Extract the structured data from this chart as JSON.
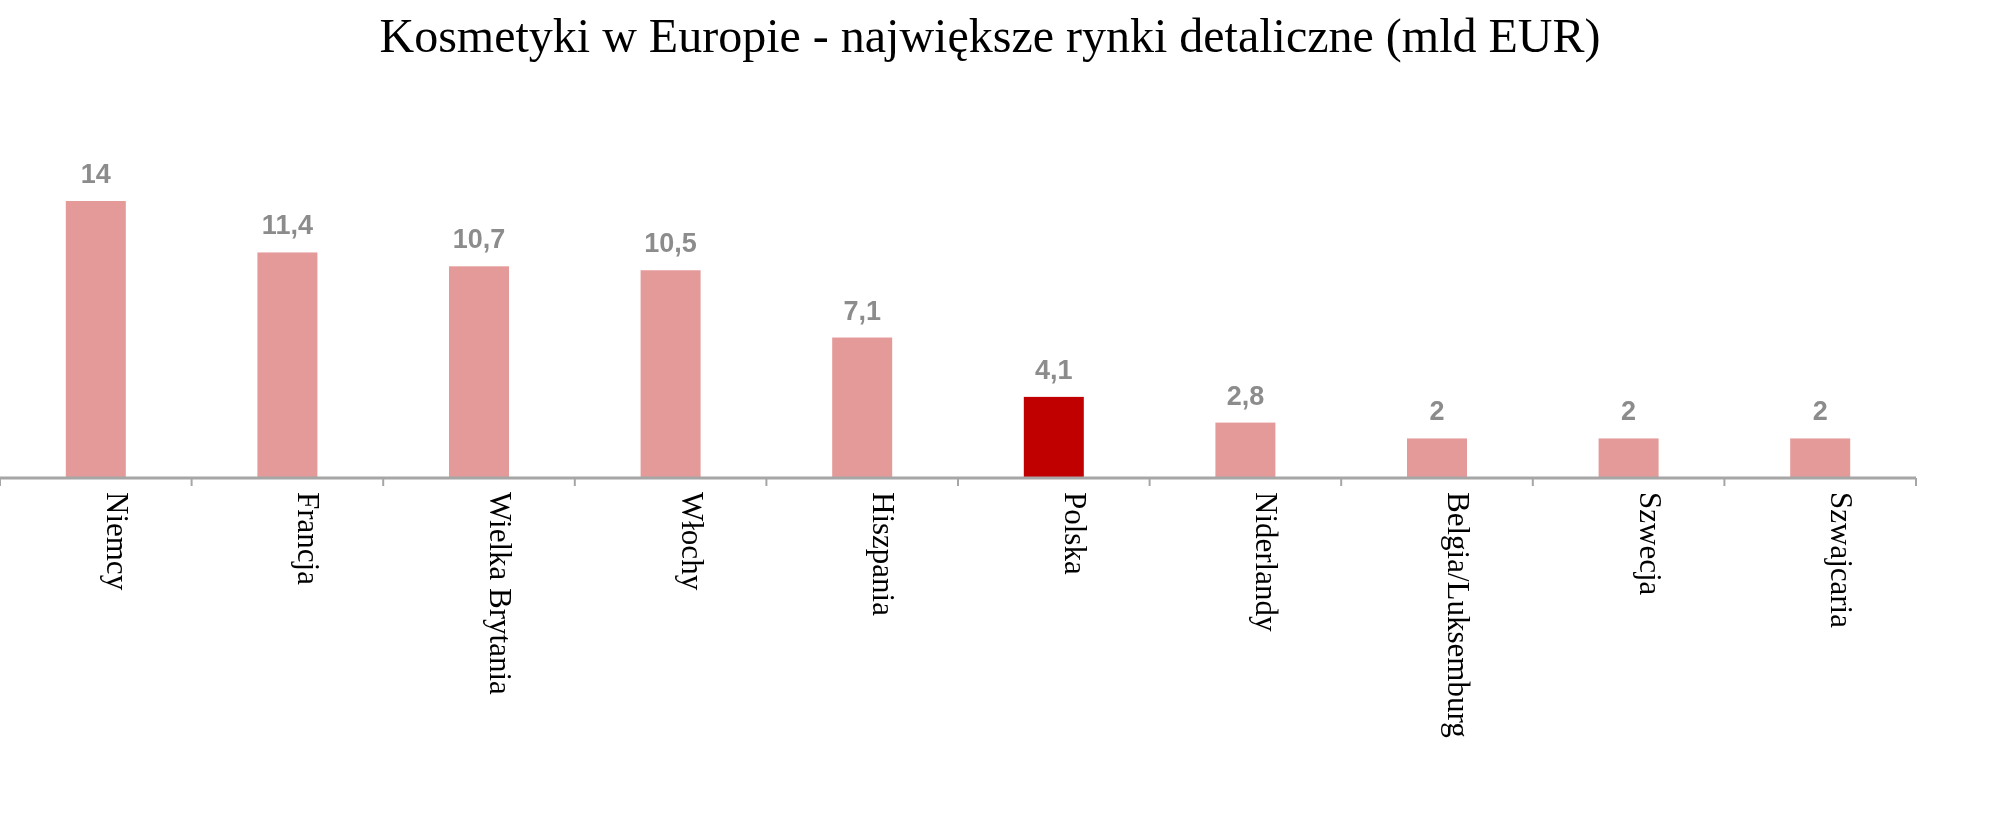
{
  "chart_data": {
    "type": "bar",
    "title": "Kosmetyki w Europie - największe rynki detaliczne (mld EUR)",
    "categories": [
      "Niemcy",
      "Francja",
      "Wielka Brytania",
      "Włochy",
      "Hiszpania",
      "Polska",
      "Niderlandy",
      "Belgia/Luksemburg",
      "Szwecja",
      "Szwajcaria"
    ],
    "values": [
      14,
      11.4,
      10.7,
      10.5,
      7.1,
      4.1,
      2.8,
      2,
      2,
      2
    ],
    "value_labels": [
      "14",
      "11,4",
      "10,7",
      "10,5",
      "7,1",
      "4,1",
      "2,8",
      "2",
      "2",
      "2"
    ],
    "colors": [
      "#e59a9a",
      "#e59a9a",
      "#e59a9a",
      "#e59a9a",
      "#e59a9a",
      "#c00000",
      "#e59a9a",
      "#e59a9a",
      "#e59a9a",
      "#e59a9a"
    ]
  }
}
